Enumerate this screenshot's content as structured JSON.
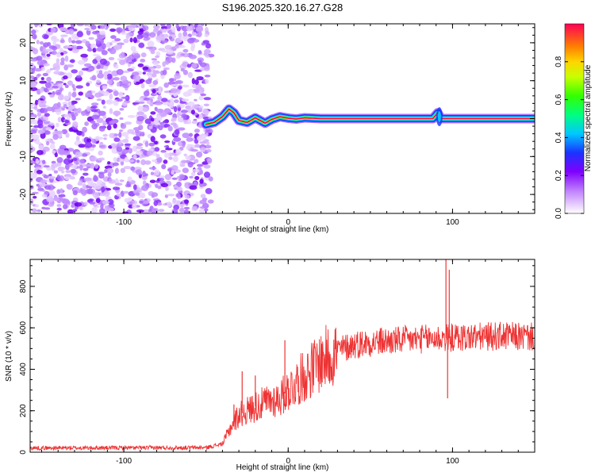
{
  "title": "S196.2025.320.16.27.G28",
  "colors": {
    "snr_line": "#ee3333",
    "axis": "#000000"
  },
  "chart_data": [
    {
      "type": "heatmap",
      "name": "spectrogram",
      "xlabel": "Height of straight line (km)",
      "ylabel": "Frequency (Hz)",
      "xlim": [
        -157,
        150
      ],
      "ylim": [
        -25,
        25
      ],
      "xticks": [
        -100,
        0,
        100
      ],
      "xtick_labels": [
        "-100",
        "0",
        "100"
      ],
      "yticks": [
        -20,
        -10,
        0,
        10,
        20
      ],
      "ytick_labels": [
        "-20",
        "-10",
        "0",
        "10",
        "20"
      ],
      "noise_region_x": [
        -157,
        -47
      ],
      "signal_track": {
        "x": [
          -50,
          -45,
          -40,
          -36,
          -33,
          -30,
          -25,
          -20,
          -17,
          -14,
          -10,
          -5,
          0,
          5,
          10,
          15,
          20,
          25,
          50,
          75,
          88,
          91,
          93,
          96,
          120,
          150
        ],
        "y": [
          -1.5,
          -1,
          0.5,
          2.5,
          1.5,
          -0.5,
          -1.0,
          0.2,
          -0.5,
          -1.2,
          -0.2,
          0.5,
          0.1,
          -0.1,
          0.2,
          0.1,
          0.0,
          0.0,
          0.0,
          0.0,
          0.0,
          1.5,
          0.0,
          0.0,
          0.0,
          0.0
        ]
      },
      "colorbar": {
        "label": "Normalized spectral amplitude",
        "range": [
          0,
          1
        ],
        "ticks": [
          0.0,
          0.2,
          0.4,
          0.6,
          0.8
        ],
        "tick_labels": [
          "0.0",
          "0.2",
          "0.4",
          "0.6",
          "0.8"
        ]
      }
    },
    {
      "type": "line",
      "name": "snr",
      "xlabel": "Height of straight line (km)",
      "ylabel": "SNR (10 * v/v)",
      "xlim": [
        -157,
        150
      ],
      "ylim": [
        0,
        930
      ],
      "xticks": [
        -100,
        0,
        100
      ],
      "xtick_labels": [
        "-100",
        "0",
        "100"
      ],
      "yticks": [
        0,
        200,
        400,
        600,
        800
      ],
      "ytick_labels": [
        "0",
        "200",
        "400",
        "600",
        "800"
      ],
      "trend": {
        "x": [
          -157,
          -50,
          -40,
          -35,
          -30,
          -20,
          -10,
          -5,
          0,
          10,
          20,
          30,
          40,
          50,
          70,
          90,
          110,
          130,
          150
        ],
        "y": [
          20,
          22,
          40,
          120,
          180,
          220,
          250,
          260,
          300,
          370,
          440,
          490,
          520,
          530,
          540,
          550,
          555,
          560,
          555
        ]
      },
      "spikes": [
        {
          "x": -33,
          "y": 230
        },
        {
          "x": -28,
          "y": 390
        },
        {
          "x": -20,
          "y": 370
        },
        {
          "x": -2,
          "y": 540
        },
        {
          "x": 96,
          "y": 930
        },
        {
          "x": 98,
          "y": 880
        },
        {
          "x": 97,
          "y": 260
        }
      ]
    }
  ]
}
